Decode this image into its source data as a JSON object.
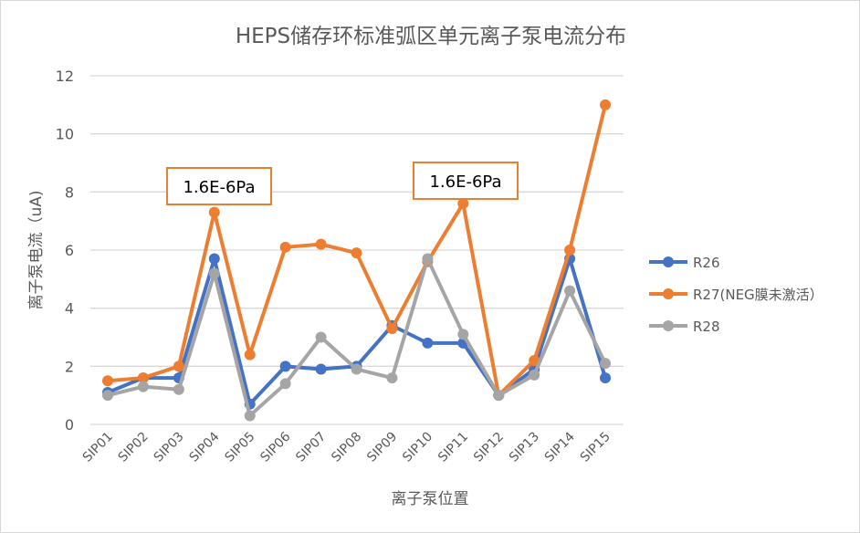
{
  "chart_data": {
    "type": "line",
    "title": "HEPS储存环标准弧区单元离子泵电流分布",
    "xlabel": "离子泵位置",
    "ylabel": "离子泵电流（uA)",
    "ylim": [
      0,
      12
    ],
    "yticks": [
      "0",
      "2",
      "4",
      "6",
      "8",
      "10",
      "12"
    ],
    "grid": true,
    "legend_position": "right",
    "categories": [
      "SIP01",
      "SIP02",
      "SIP03",
      "SIP04",
      "SIP05",
      "SIP06",
      "SIP07",
      "SIP08",
      "SIP09",
      "SIP10",
      "SIP11",
      "SIP12",
      "SIP13",
      "SIP14",
      "SIP15"
    ],
    "series": [
      {
        "name": "R26",
        "color": "#4472c4",
        "values": [
          1.1,
          1.6,
          1.6,
          5.7,
          0.7,
          2.0,
          1.9,
          2.0,
          3.4,
          2.8,
          2.8,
          1.0,
          1.9,
          5.7,
          1.6
        ]
      },
      {
        "name": "R27(NEG膜未激活）",
        "color": "#ed7d31",
        "values": [
          1.5,
          1.6,
          2.0,
          7.3,
          2.4,
          6.1,
          6.2,
          5.9,
          3.3,
          5.6,
          7.6,
          1.0,
          2.2,
          6.0,
          11.0
        ]
      },
      {
        "name": "R28",
        "color": "#a5a5a5",
        "values": [
          1.0,
          1.3,
          1.2,
          5.2,
          0.3,
          1.4,
          3.0,
          1.9,
          1.6,
          5.7,
          3.1,
          1.0,
          1.7,
          4.6,
          2.1
        ]
      }
    ],
    "annotations": [
      {
        "text": "1.6E-6Pa",
        "category": "SIP04"
      },
      {
        "text": "1.6E-6Pa",
        "category": "SIP11"
      }
    ]
  }
}
